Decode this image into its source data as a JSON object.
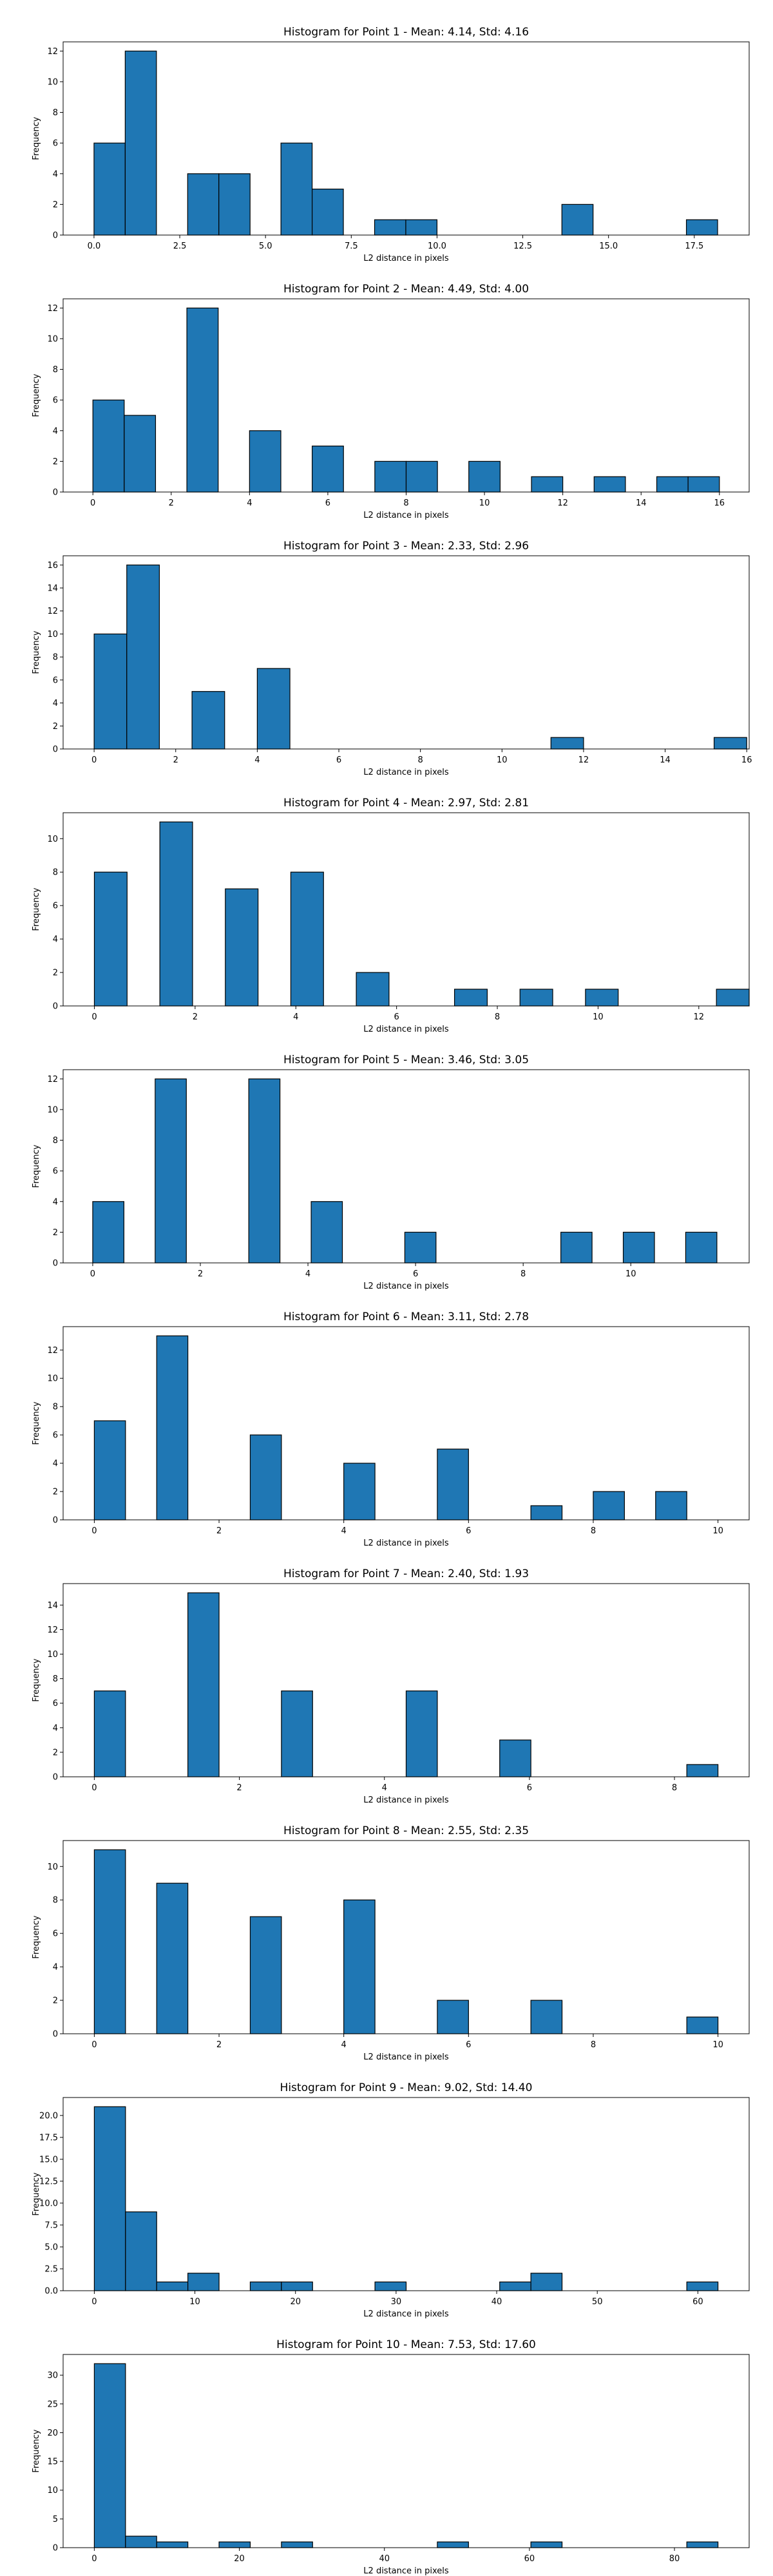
{
  "chart_data": [
    {
      "type": "bar",
      "title": "Histogram for Point 1 - Mean: 4.14, Std: 4.16",
      "xlabel": "L2 distance in pixels",
      "ylabel": "Frequency",
      "xlim": [
        -0.9,
        19.1
      ],
      "ylim": [
        0,
        12.6
      ],
      "xticks": [
        0,
        2.5,
        5,
        7.5,
        10,
        12.5,
        15,
        17.5
      ],
      "xtick_labels": [
        "0.0",
        "2.5",
        "5.0",
        "7.5",
        "10.0",
        "12.5",
        "15.0",
        "17.5"
      ],
      "yticks": [
        0,
        2,
        4,
        6,
        8,
        10,
        12
      ],
      "ytick_labels": [
        "0",
        "2",
        "4",
        "6",
        "8",
        "10",
        "12"
      ],
      "bin_edges": [
        0,
        0.91,
        1.82,
        2.73,
        3.64,
        4.55,
        5.45,
        6.36,
        7.27,
        8.18,
        9.09,
        10,
        10.91,
        11.82,
        12.73,
        13.64,
        14.55,
        15.45,
        16.36,
        17.27,
        18.18
      ],
      "values": [
        6,
        12,
        0,
        4,
        4,
        0,
        6,
        3,
        0,
        1,
        1,
        0,
        0,
        0,
        0,
        2,
        0,
        0,
        0,
        1
      ]
    },
    {
      "type": "bar",
      "title": "Histogram for Point 2 - Mean: 4.49, Std: 4.00",
      "xlabel": "L2 distance in pixels",
      "ylabel": "Frequency",
      "xlim": [
        -0.76,
        16.76
      ],
      "ylim": [
        0,
        12.6
      ],
      "xticks": [
        0,
        2,
        4,
        6,
        8,
        10,
        12,
        14,
        16
      ],
      "xtick_labels": [
        "0",
        "2",
        "4",
        "6",
        "8",
        "10",
        "12",
        "14",
        "16"
      ],
      "yticks": [
        0,
        2,
        4,
        6,
        8,
        10,
        12
      ],
      "ytick_labels": [
        "0",
        "2",
        "4",
        "6",
        "8",
        "10",
        "12"
      ],
      "bin_edges": [
        0,
        0.8,
        1.6,
        2.4,
        3.2,
        4.0,
        4.8,
        5.6,
        6.4,
        7.2,
        8.0,
        8.8,
        9.6,
        10.4,
        11.2,
        12.0,
        12.8,
        13.6,
        14.4,
        15.2,
        16.0
      ],
      "values": [
        6,
        5,
        0,
        12,
        0,
        4,
        0,
        3,
        0,
        2,
        2,
        0,
        2,
        0,
        1,
        0,
        1,
        0,
        1,
        1
      ]
    },
    {
      "type": "bar",
      "title": "Histogram for Point 3 - Mean: 2.33, Std: 2.96",
      "xlabel": "L2 distance in pixels",
      "ylabel": "Frequency",
      "xlim": [
        -0.76,
        16.06
      ],
      "ylim": [
        0,
        16.8
      ],
      "xticks": [
        0,
        2,
        4,
        6,
        8,
        10,
        12,
        14,
        16
      ],
      "xtick_labels": [
        "0",
        "2",
        "4",
        "6",
        "8",
        "10",
        "12",
        "14",
        "16"
      ],
      "yticks": [
        0,
        2,
        4,
        6,
        8,
        10,
        12,
        14,
        16
      ],
      "ytick_labels": [
        "0",
        "2",
        "4",
        "6",
        "8",
        "10",
        "12",
        "14",
        "16"
      ],
      "bin_edges": [
        0,
        0.8,
        1.6,
        2.4,
        3.2,
        4.0,
        4.8,
        5.6,
        6.4,
        7.2,
        8.0,
        8.8,
        9.6,
        10.4,
        11.2,
        12.0,
        12.8,
        13.6,
        14.4,
        15.2,
        16.0
      ],
      "values": [
        10,
        16,
        0,
        5,
        0,
        7,
        0,
        0,
        0,
        0,
        0,
        0,
        0,
        0,
        1,
        0,
        0,
        0,
        0,
        1
      ]
    },
    {
      "type": "bar",
      "title": "Histogram for Point 4 - Mean: 2.97, Std: 2.81",
      "xlabel": "L2 distance in pixels",
      "ylabel": "Frequency",
      "xlim": [
        -0.62,
        13.0
      ],
      "ylim": [
        0,
        11.55
      ],
      "xticks": [
        0,
        2,
        4,
        6,
        8,
        10,
        12
      ],
      "xtick_labels": [
        "0",
        "2",
        "4",
        "6",
        "8",
        "10",
        "12"
      ],
      "yticks": [
        0,
        2,
        4,
        6,
        8,
        10
      ],
      "ytick_labels": [
        "0",
        "2",
        "4",
        "6",
        "8",
        "10"
      ],
      "bin_edges": [
        0,
        0.65,
        1.3,
        1.95,
        2.6,
        3.25,
        3.9,
        4.55,
        5.2,
        5.85,
        6.5,
        7.15,
        7.8,
        8.45,
        9.1,
        9.75,
        10.4,
        11.05,
        11.7,
        12.35,
        13.0
      ],
      "values": [
        8,
        0,
        11,
        0,
        7,
        0,
        8,
        0,
        2,
        0,
        0,
        1,
        0,
        1,
        0,
        1,
        0,
        0,
        0,
        1
      ]
    },
    {
      "type": "bar",
      "title": "Histogram for Point 5 - Mean: 3.46, Std: 3.05",
      "xlabel": "L2 distance in pixels",
      "ylabel": "Frequency",
      "xlim": [
        -0.55,
        12.2
      ],
      "ylim": [
        0,
        12.6
      ],
      "xticks": [
        0,
        2,
        4,
        6,
        8,
        10
      ],
      "xtick_labels": [
        "0",
        "2",
        "4",
        "6",
        "8",
        "10"
      ],
      "yticks": [
        0,
        2,
        4,
        6,
        8,
        10,
        12
      ],
      "ytick_labels": [
        "0",
        "2",
        "4",
        "6",
        "8",
        "10",
        "12"
      ],
      "bin_edges": [
        0,
        0.58,
        1.16,
        1.74,
        2.32,
        2.9,
        3.48,
        4.06,
        4.64,
        5.22,
        5.8,
        6.38,
        6.96,
        7.54,
        8.12,
        8.7,
        9.28,
        9.86,
        10.44,
        11.02,
        11.6
      ],
      "values": [
        4,
        0,
        12,
        0,
        0,
        12,
        0,
        4,
        0,
        0,
        2,
        0,
        0,
        0,
        0,
        2,
        0,
        2,
        0,
        2
      ]
    },
    {
      "type": "bar",
      "title": "Histogram for Point 6 - Mean: 3.11, Std: 2.78",
      "xlabel": "L2 distance in pixels",
      "ylabel": "Frequency",
      "xlim": [
        -0.5,
        10.5
      ],
      "ylim": [
        0,
        13.65
      ],
      "xticks": [
        0,
        2,
        4,
        6,
        8,
        10
      ],
      "xtick_labels": [
        "0",
        "2",
        "4",
        "6",
        "8",
        "10"
      ],
      "yticks": [
        0,
        2,
        4,
        6,
        8,
        10,
        12
      ],
      "ytick_labels": [
        "0",
        "2",
        "4",
        "6",
        "8",
        "10",
        "12"
      ],
      "bin_edges": [
        0,
        0.5,
        1.0,
        1.5,
        2.0,
        2.5,
        3.0,
        3.5,
        4.0,
        4.5,
        5.0,
        5.5,
        6.0,
        6.5,
        7.0,
        7.5,
        8.0,
        8.5,
        9.0,
        9.5,
        10.0
      ],
      "values": [
        7,
        0,
        13,
        0,
        0,
        6,
        0,
        0,
        4,
        0,
        0,
        5,
        0,
        0,
        1,
        0,
        2,
        0,
        2,
        0
      ]
    },
    {
      "type": "bar",
      "title": "Histogram for Point 7 - Mean: 2.40, Std: 1.93",
      "xlabel": "L2 distance in pixels",
      "ylabel": "Frequency",
      "xlim": [
        -0.43,
        9.03
      ],
      "ylim": [
        0,
        15.75
      ],
      "xticks": [
        0,
        2,
        4,
        6,
        8
      ],
      "xtick_labels": [
        "0",
        "2",
        "4",
        "6",
        "8"
      ],
      "yticks": [
        0,
        2,
        4,
        6,
        8,
        10,
        12,
        14
      ],
      "ytick_labels": [
        "0",
        "2",
        "4",
        "6",
        "8",
        "10",
        "12",
        "14"
      ],
      "bin_edges": [
        0,
        0.43,
        0.86,
        1.29,
        1.72,
        2.15,
        2.58,
        3.01,
        3.44,
        3.87,
        4.3,
        4.73,
        5.16,
        5.59,
        6.02,
        6.45,
        6.88,
        7.31,
        7.74,
        8.17,
        8.6
      ],
      "values": [
        7,
        0,
        0,
        15,
        0,
        0,
        7,
        0,
        0,
        0,
        7,
        0,
        0,
        3,
        0,
        0,
        0,
        0,
        0,
        1
      ]
    },
    {
      "type": "bar",
      "title": "Histogram for Point 8 - Mean: 2.55, Std: 2.35",
      "xlabel": "L2 distance in pixels",
      "ylabel": "Frequency",
      "xlim": [
        -0.5,
        10.5
      ],
      "ylim": [
        0,
        11.55
      ],
      "xticks": [
        0,
        2,
        4,
        6,
        8,
        10
      ],
      "xtick_labels": [
        "0",
        "2",
        "4",
        "6",
        "8",
        "10"
      ],
      "yticks": [
        0,
        2,
        4,
        6,
        8,
        10
      ],
      "ytick_labels": [
        "0",
        "2",
        "4",
        "6",
        "8",
        "10"
      ],
      "bin_edges": [
        0,
        0.5,
        1.0,
        1.5,
        2.0,
        2.5,
        3.0,
        3.5,
        4.0,
        4.5,
        5.0,
        5.5,
        6.0,
        6.5,
        7.0,
        7.5,
        8.0,
        8.5,
        9.0,
        9.5,
        10.0
      ],
      "values": [
        11,
        0,
        9,
        0,
        0,
        7,
        0,
        0,
        8,
        0,
        0,
        2,
        0,
        0,
        2,
        0,
        0,
        0,
        0,
        1
      ]
    },
    {
      "type": "bar",
      "title": "Histogram for Point 9 - Mean: 9.02, Std: 14.40",
      "xlabel": "L2 distance in pixels",
      "ylabel": "Frequency",
      "xlim": [
        -3.1,
        65.1
      ],
      "ylim": [
        0,
        22.05
      ],
      "xticks": [
        0,
        10,
        20,
        30,
        40,
        50,
        60
      ],
      "xtick_labels": [
        "0",
        "10",
        "20",
        "30",
        "40",
        "50",
        "60"
      ],
      "yticks": [
        0,
        2.5,
        5,
        7.5,
        10,
        12.5,
        15,
        17.5,
        20
      ],
      "ytick_labels": [
        "0.0",
        "2.5",
        "5.0",
        "7.5",
        "10.0",
        "12.5",
        "15.0",
        "17.5",
        "20.0"
      ],
      "bin_edges": [
        0,
        3.1,
        6.2,
        9.3,
        12.4,
        15.5,
        18.6,
        21.7,
        24.8,
        27.9,
        31.0,
        34.1,
        37.2,
        40.3,
        43.4,
        46.5,
        49.6,
        52.7,
        55.8,
        58.9,
        62.0
      ],
      "values": [
        21,
        9,
        1,
        2,
        0,
        1,
        1,
        0,
        0,
        1,
        0,
        0,
        0,
        1,
        2,
        0,
        0,
        0,
        0,
        1
      ]
    },
    {
      "type": "bar",
      "title": "Histogram for Point 10 - Mean: 7.53, Std: 17.60",
      "xlabel": "L2 distance in pixels",
      "ylabel": "Frequency",
      "xlim": [
        -4.3,
        90.3
      ],
      "ylim": [
        0,
        33.6
      ],
      "xticks": [
        0,
        20,
        40,
        60,
        80
      ],
      "xtick_labels": [
        "0",
        "20",
        "40",
        "60",
        "80"
      ],
      "yticks": [
        0,
        5,
        10,
        15,
        20,
        25,
        30
      ],
      "ytick_labels": [
        "0",
        "5",
        "10",
        "15",
        "20",
        "25",
        "30"
      ],
      "bin_edges": [
        0,
        4.3,
        8.6,
        12.9,
        17.2,
        21.5,
        25.8,
        30.1,
        34.4,
        38.7,
        43.0,
        47.3,
        51.6,
        55.9,
        60.2,
        64.5,
        68.8,
        73.1,
        77.4,
        81.7,
        86.0
      ],
      "values": [
        32,
        2,
        1,
        0,
        1,
        0,
        1,
        0,
        0,
        0,
        0,
        1,
        0,
        0,
        1,
        0,
        0,
        0,
        0,
        1
      ]
    }
  ],
  "colors": {
    "bar_fill": "#1f77b4",
    "bar_edge": "#000000",
    "axis": "#000000",
    "text": "#000000"
  }
}
